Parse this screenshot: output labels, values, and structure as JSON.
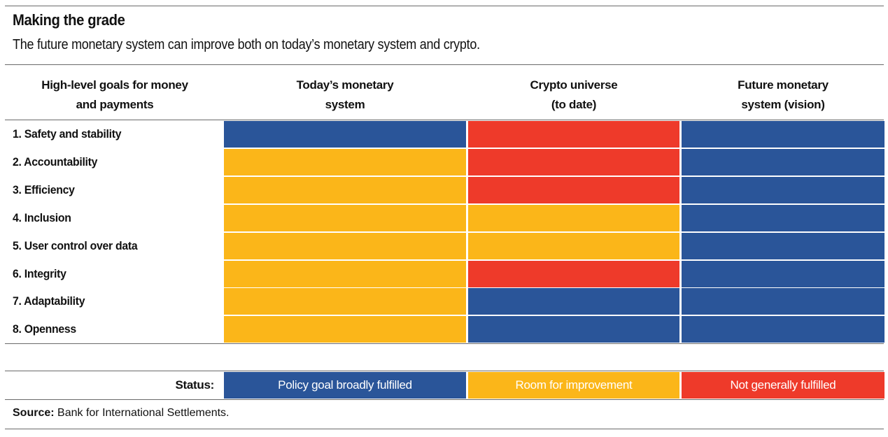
{
  "chart_data": {
    "type": "table",
    "title": "Making the grade",
    "subtitle": "The future monetary system can improve both on today’s monetary system and crypto.",
    "row_header": "High-level goals for money\nand payments",
    "columns": [
      "Today’s monetary\nsystem",
      "Crypto universe\n(to date)",
      "Future monetary\nsystem (vision)"
    ],
    "rows": [
      {
        "label": "1. Safety and stability",
        "statuses": [
          "fulfilled",
          "not_fulfilled",
          "fulfilled"
        ]
      },
      {
        "label": "2. Accountability",
        "statuses": [
          "improvement",
          "not_fulfilled",
          "fulfilled"
        ]
      },
      {
        "label": "3. Efficiency",
        "statuses": [
          "improvement",
          "not_fulfilled",
          "fulfilled"
        ]
      },
      {
        "label": "4. Inclusion",
        "statuses": [
          "improvement",
          "improvement",
          "fulfilled"
        ]
      },
      {
        "label": "5. User control over data",
        "statuses": [
          "improvement",
          "improvement",
          "fulfilled"
        ]
      },
      {
        "label": "6. Integrity",
        "statuses": [
          "improvement",
          "not_fulfilled",
          "fulfilled"
        ]
      },
      {
        "label": "7. Adaptability",
        "statuses": [
          "improvement",
          "fulfilled",
          "fulfilled"
        ]
      },
      {
        "label": "8. Openness",
        "statuses": [
          "improvement",
          "fulfilled",
          "fulfilled"
        ]
      }
    ],
    "legend": {
      "label": "Status:",
      "items": [
        {
          "key": "fulfilled",
          "label": "Policy goal broadly fulfilled",
          "color": "#2a5599"
        },
        {
          "key": "improvement",
          "label": "Room for improvement",
          "color": "#fbb619"
        },
        {
          "key": "not_fulfilled",
          "label": "Not generally fulfilled",
          "color": "#ee3a2a"
        }
      ]
    },
    "source_label": "Source:",
    "source_text": "Bank for International Settlements."
  }
}
